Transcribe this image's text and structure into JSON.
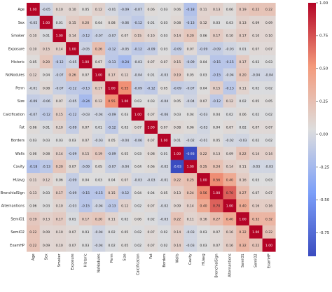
{
  "chart_data": {
    "type": "heatmap",
    "title": "",
    "labels": [
      "Age",
      "Sex",
      "Smoker",
      "Exposure",
      "Historic",
      "NoNodules",
      "Perm",
      "Size",
      "Calcification",
      "Fat",
      "Borders",
      "Walls",
      "Cavity",
      "HUavg",
      "BronchialSign",
      "Alternantions",
      "SemiO1",
      "SemiO2",
      "ExamHP"
    ],
    "matrix": [
      [
        1.0,
        -0.05,
        0.1,
        0.1,
        0.05,
        0.12,
        -0.01,
        -0.09,
        -0.07,
        0.06,
        0.03,
        0.06,
        -0.18,
        0.11,
        0.13,
        0.06,
        0.19,
        0.22,
        0.22
      ],
      [
        -0.05,
        1.0,
        0.01,
        0.15,
        0.2,
        0.04,
        0.08,
        -0.06,
        -0.12,
        0.01,
        0.03,
        0.08,
        -0.13,
        0.12,
        0.03,
        0.03,
        0.13,
        0.09,
        0.09
      ],
      [
        0.1,
        0.01,
        1.0,
        0.14,
        -0.12,
        -0.07,
        -0.07,
        0.07,
        0.15,
        0.1,
        0.03,
        0.14,
        0.2,
        0.06,
        0.17,
        0.1,
        0.17,
        0.1,
        0.1
      ],
      [
        0.1,
        0.15,
        0.14,
        1.0,
        -0.05,
        0.26,
        -0.12,
        -0.05,
        -0.12,
        -0.09,
        0.03,
        -0.09,
        0.07,
        -0.09,
        -0.09,
        -0.03,
        0.01,
        0.07,
        0.07
      ],
      [
        0.05,
        0.2,
        -0.12,
        -0.05,
        1.0,
        0.07,
        -0.13,
        -0.24,
        -0.03,
        0.07,
        0.07,
        0.15,
        -0.09,
        0.04,
        -0.15,
        -0.15,
        0.17,
        0.03,
        0.03
      ],
      [
        0.12,
        0.04,
        -0.07,
        0.26,
        0.07,
        1.0,
        0.17,
        0.12,
        -0.04,
        0.01,
        -0.03,
        0.19,
        0.05,
        0.03,
        -0.15,
        -0.04,
        0.2,
        -0.04,
        -0.04
      ],
      [
        -0.01,
        0.08,
        -0.07,
        -0.12,
        -0.13,
        0.17,
        1.0,
        0.55,
        -0.09,
        -0.12,
        0.05,
        -0.09,
        -0.07,
        0.04,
        0.15,
        -0.13,
        0.11,
        0.02,
        0.02
      ],
      [
        -0.09,
        -0.06,
        0.07,
        -0.05,
        -0.24,
        0.12,
        0.55,
        1.0,
        0.03,
        0.03,
        -0.04,
        0.05,
        -0.04,
        0.07,
        -0.12,
        0.12,
        0.02,
        0.05,
        0.05
      ],
      [
        -0.07,
        -0.12,
        0.15,
        -0.12,
        -0.03,
        -0.04,
        -0.09,
        0.03,
        1.0,
        0.07,
        -0.06,
        0.03,
        0.04,
        -0.03,
        0.04,
        0.02,
        0.06,
        0.02,
        0.02
      ],
      [
        0.06,
        0.01,
        0.1,
        -0.09,
        0.07,
        0.01,
        -0.12,
        0.03,
        0.07,
        1.0,
        0.07,
        0.08,
        0.06,
        -0.03,
        0.04,
        0.07,
        0.02,
        0.07,
        0.07
      ],
      [
        0.03,
        0.03,
        0.03,
        0.03,
        0.07,
        -0.03,
        0.05,
        -0.04,
        -0.06,
        0.07,
        1.0,
        0.01,
        -0.02,
        -0.01,
        0.05,
        -0.02,
        -0.03,
        0.02,
        0.02
      ],
      [
        0.06,
        0.08,
        0.14,
        -0.09,
        0.15,
        0.19,
        -0.09,
        0.05,
        0.03,
        0.08,
        0.01,
        1.0,
        -0.93,
        0.22,
        0.13,
        0.09,
        0.22,
        0.14,
        0.14
      ],
      [
        -0.18,
        -0.13,
        0.2,
        0.07,
        -0.09,
        0.05,
        -0.07,
        -0.04,
        0.04,
        0.06,
        -0.02,
        -0.93,
        1.0,
        0.25,
        0.24,
        0.14,
        0.11,
        -0.03,
        -0.03
      ],
      [
        0.11,
        0.12,
        0.06,
        -0.09,
        0.04,
        0.03,
        0.04,
        0.07,
        -0.03,
        -0.03,
        -0.01,
        0.22,
        0.25,
        1.0,
        0.56,
        0.4,
        0.16,
        0.03,
        0.03
      ],
      [
        0.13,
        0.03,
        0.17,
        -0.09,
        -0.15,
        -0.15,
        0.15,
        -0.12,
        0.04,
        0.04,
        0.05,
        0.13,
        0.24,
        0.56,
        1.0,
        0.7,
        0.27,
        0.07,
        0.07
      ],
      [
        0.06,
        0.03,
        0.1,
        -0.03,
        -0.15,
        -0.04,
        -0.13,
        0.12,
        0.02,
        0.07,
        -0.02,
        0.09,
        0.14,
        0.4,
        0.7,
        1.0,
        0.4,
        0.16,
        0.16
      ],
      [
        0.19,
        0.13,
        0.17,
        0.01,
        0.17,
        0.2,
        0.11,
        0.02,
        0.06,
        0.02,
        -0.03,
        0.22,
        0.11,
        0.16,
        0.27,
        0.4,
        1.0,
        0.32,
        0.32
      ],
      [
        0.22,
        0.09,
        0.1,
        0.07,
        0.03,
        -0.04,
        0.02,
        0.05,
        0.02,
        0.07,
        0.02,
        0.14,
        -0.03,
        0.03,
        0.07,
        0.16,
        0.32,
        1.0,
        0.22
      ],
      [
        0.22,
        0.09,
        0.1,
        0.07,
        0.03,
        -0.04,
        0.02,
        0.05,
        0.02,
        0.07,
        0.02,
        0.14,
        -0.03,
        0.03,
        0.07,
        0.16,
        0.32,
        0.22,
        1.0
      ]
    ],
    "value_range": [
      -0.93,
      1.0
    ],
    "colormap": "coolwarm",
    "colorbar_ticks": [
      1.0,
      0.75,
      0.5,
      0.25,
      0.0,
      -0.25,
      -0.5,
      -0.75
    ],
    "colorbar_tick_labels": [
      "1.00",
      "0.75",
      "0.50",
      "0.25",
      "0.00",
      "-0.25",
      "-0.50",
      "-0.75"
    ],
    "xlabel": "",
    "ylabel": "",
    "grid": false
  }
}
